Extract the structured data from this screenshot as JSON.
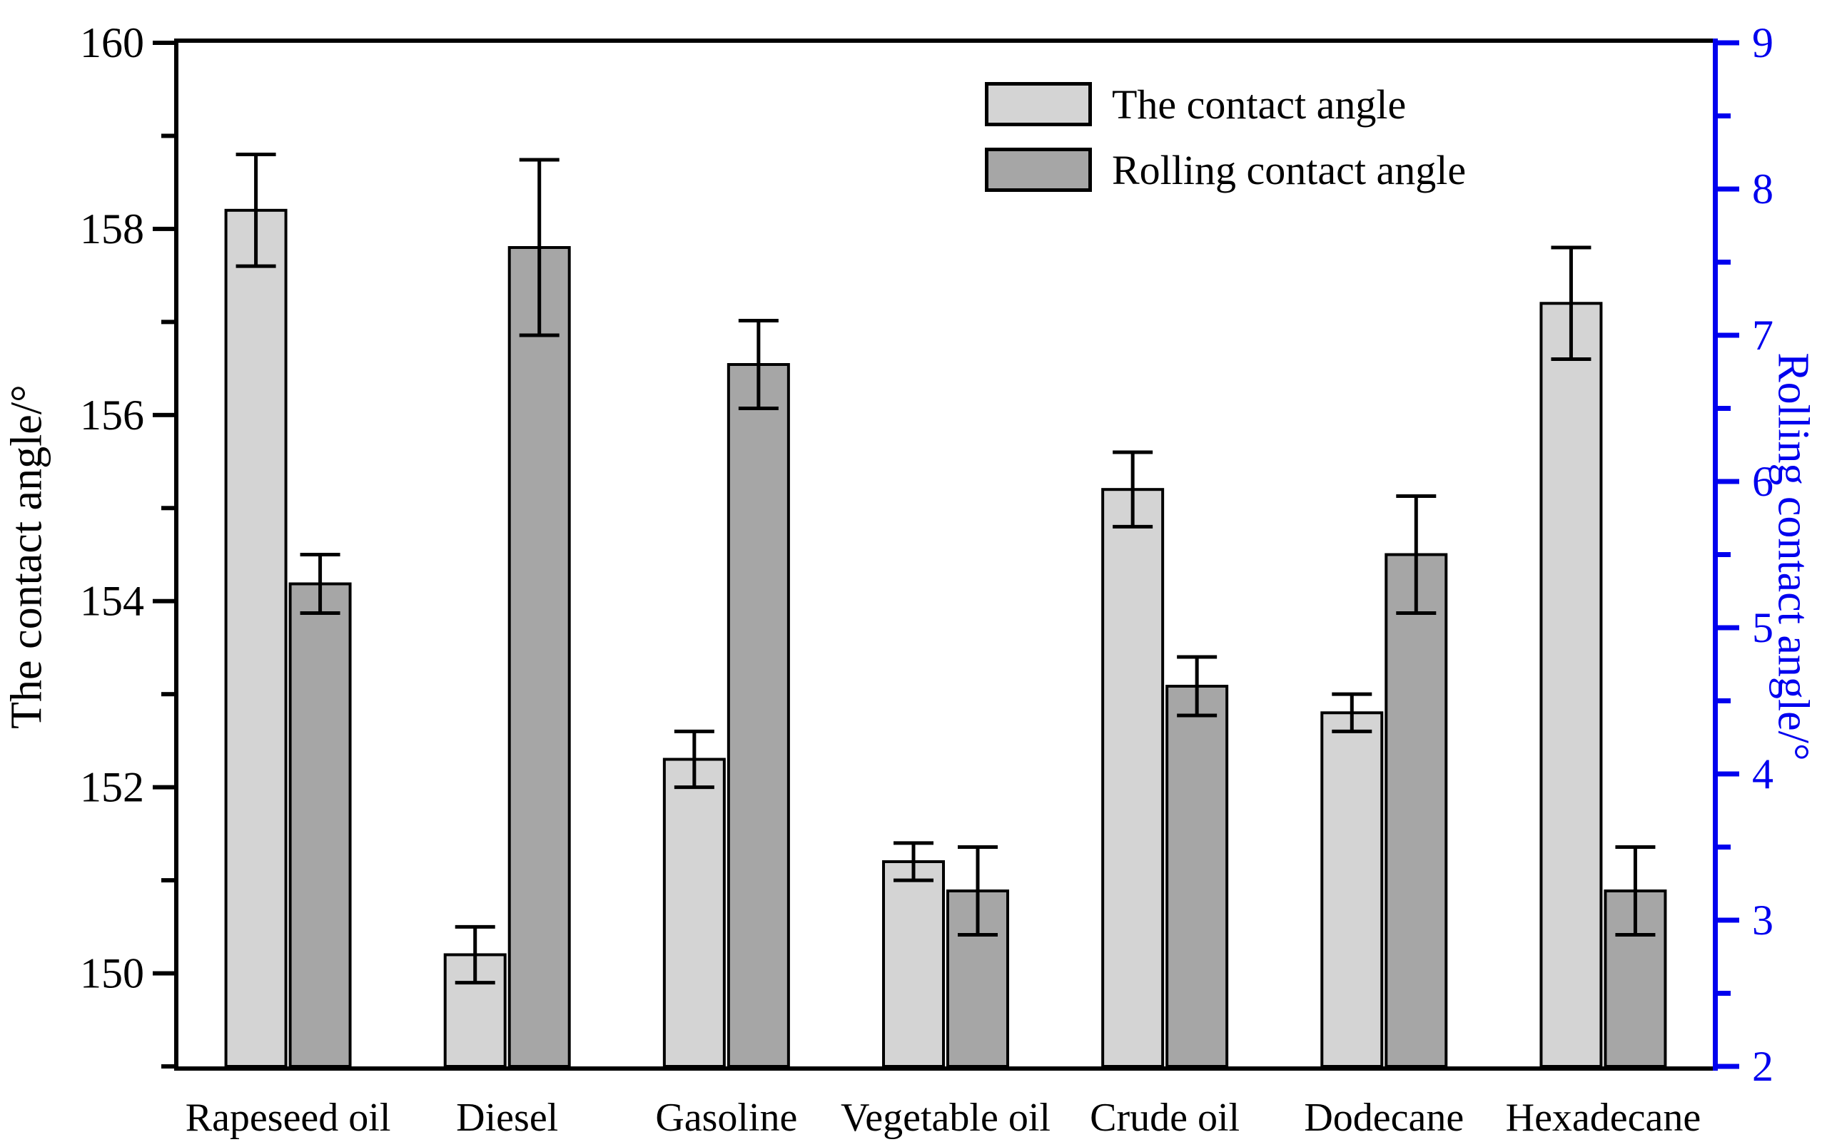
{
  "figure": {
    "background": "#ffffff",
    "axis_color": "#000000",
    "right_axis_color": "#0000ee",
    "bar_edge_color": "#000000",
    "error_bar_color": "#000000"
  },
  "legend": {
    "items": [
      {
        "label": "The contact angle",
        "color": "#d4d4d4"
      },
      {
        "label": "Rolling contact angle",
        "color": "#a6a6a6"
      }
    ]
  },
  "chart_data": {
    "type": "bar",
    "categories": [
      "Rapeseed oil",
      "Diesel",
      "Gasoline",
      "Vegetable oil",
      "Crude oil",
      "Dodecane",
      "Hexadecane"
    ],
    "series": [
      {
        "name": "The contact angle",
        "axis": "left",
        "color": "#d4d4d4",
        "values": [
          158.2,
          150.2,
          152.3,
          151.2,
          155.2,
          152.8,
          157.2
        ],
        "errors": [
          0.6,
          0.3,
          0.3,
          0.2,
          0.4,
          0.2,
          0.6
        ]
      },
      {
        "name": "Rolling contact angle",
        "axis": "right",
        "color": "#a6a6a6",
        "values": [
          5.3,
          7.6,
          6.8,
          3.2,
          4.6,
          5.5,
          3.2
        ],
        "errors": [
          0.2,
          0.6,
          0.3,
          0.3,
          0.2,
          0.4,
          0.3
        ]
      }
    ],
    "left_axis": {
      "label": "The contact angle/°",
      "min": 149,
      "max": 160,
      "major_ticks": [
        150,
        152,
        154,
        156,
        158,
        160
      ],
      "minor_ticks": [
        149,
        151,
        153,
        155,
        157,
        159
      ]
    },
    "right_axis": {
      "label": "Rolling contact angle/°",
      "min": 2,
      "max": 9,
      "major_ticks": [
        2,
        3,
        4,
        5,
        6,
        7,
        8,
        9
      ],
      "minor_ticks": [
        2.5,
        3.5,
        4.5,
        5.5,
        6.5,
        7.5,
        8.5
      ]
    },
    "grid": false,
    "legend_position": "top-center-right",
    "title": "",
    "xlabel": ""
  }
}
